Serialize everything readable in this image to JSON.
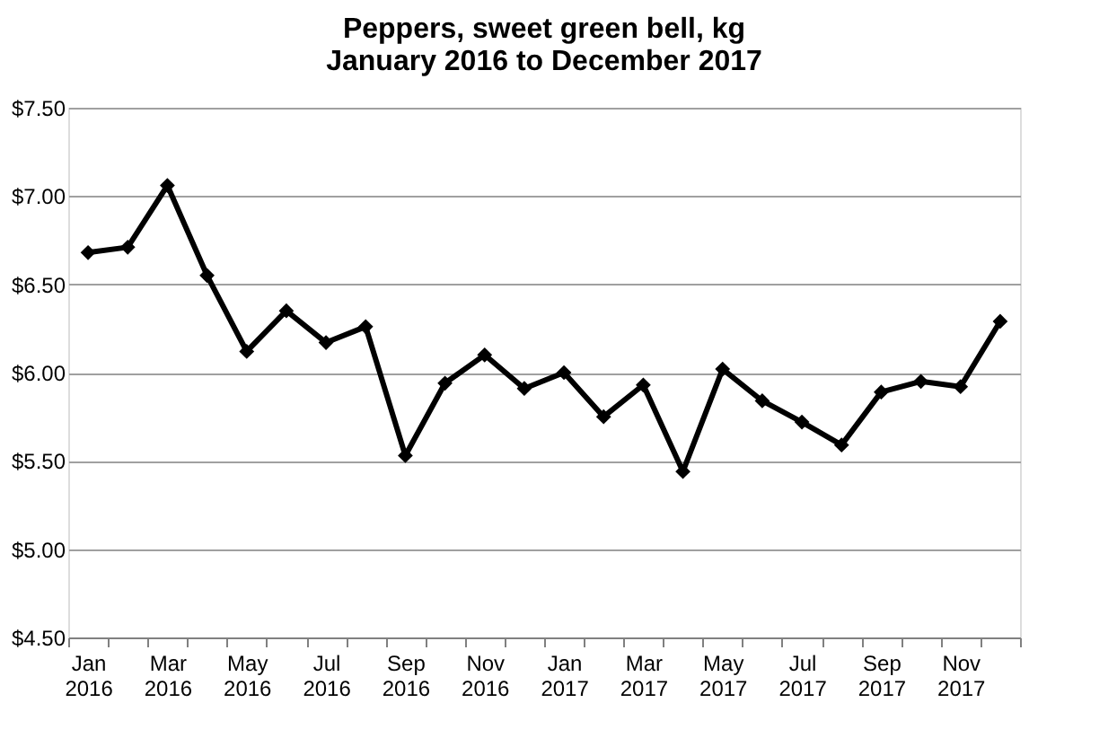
{
  "chart_data": {
    "type": "line",
    "title": [
      "Peppers, sweet green bell, kg",
      "January 2016 to December 2017"
    ],
    "categories": [
      "Jan 2016",
      null,
      "Mar 2016",
      null,
      "May 2016",
      null,
      "Jul 2016",
      null,
      "Sep 2016",
      null,
      "Nov 2016",
      null,
      "Jan 2017",
      null,
      "Mar 2017",
      null,
      "May 2017",
      null,
      "Jul 2017",
      null,
      "Sep 2017",
      null,
      "Nov 2017",
      null
    ],
    "series": [
      {
        "color": "#000000",
        "values": [
          6.68,
          6.71,
          7.06,
          6.55,
          6.12,
          6.35,
          6.17,
          6.26,
          5.53,
          5.94,
          6.1,
          5.91,
          6.0,
          5.75,
          5.93,
          5.44,
          6.02,
          5.84,
          5.72,
          5.59,
          5.89,
          5.95,
          5.92,
          6.29
        ]
      }
    ],
    "ylim": [
      4.5,
      7.5
    ],
    "yticks": [
      {
        "value": 4.5,
        "label": "$4.50"
      },
      {
        "value": 5.0,
        "label": "$5.00"
      },
      {
        "value": 5.5,
        "label": "$5.50"
      },
      {
        "value": 6.0,
        "label": "$6.00"
      },
      {
        "value": 6.5,
        "label": "$6.50"
      },
      {
        "value": 7.0,
        "label": "$7.00"
      },
      {
        "value": 7.5,
        "label": "$7.50"
      }
    ],
    "grid": "y",
    "marker": "diamond",
    "line_style": "solid"
  }
}
